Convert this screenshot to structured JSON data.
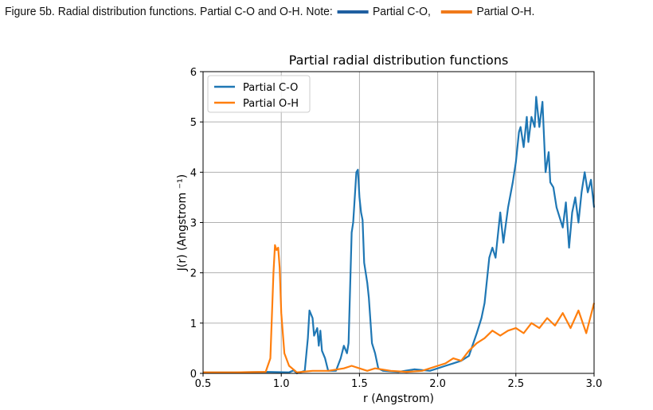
{
  "caption": {
    "label": "Figure 5b.",
    "text": "Radial distribution functions. Partial C-O and O-H.",
    "note": "Note:",
    "legend": [
      {
        "text": "Partial C-O,",
        "color": "#1f5fa0"
      },
      {
        "text": "Partial O-H.",
        "color": "#f07a1a"
      }
    ]
  },
  "chart_data": {
    "type": "line",
    "title": "Partial radial distribution functions",
    "xlabel": "r (Angstrom)",
    "ylabel": "J(r) (Angstrom ⁻¹)",
    "xlim": [
      0.5,
      3.0
    ],
    "ylim": [
      0,
      6
    ],
    "xticks": [
      "0.5",
      "1.0",
      "1.5",
      "2.0",
      "2.5",
      "3.0"
    ],
    "yticks": [
      "0",
      "1",
      "2",
      "3",
      "4",
      "5",
      "6"
    ],
    "grid": true,
    "legend_position": "top-left",
    "series": [
      {
        "name": "Partial C-O",
        "color": "#1f77b4",
        "x": [
          0.5,
          0.7,
          0.9,
          1.05,
          1.08,
          1.1,
          1.15,
          1.17,
          1.18,
          1.2,
          1.21,
          1.23,
          1.24,
          1.25,
          1.26,
          1.28,
          1.3,
          1.35,
          1.38,
          1.4,
          1.42,
          1.43,
          1.45,
          1.46,
          1.48,
          1.49,
          1.5,
          1.51,
          1.52,
          1.53,
          1.55,
          1.56,
          1.58,
          1.6,
          1.62,
          1.65,
          1.75,
          1.85,
          1.95,
          2.0,
          2.05,
          2.1,
          2.15,
          2.2,
          2.25,
          2.28,
          2.3,
          2.33,
          2.35,
          2.37,
          2.38,
          2.4,
          2.42,
          2.45,
          2.48,
          2.5,
          2.52,
          2.53,
          2.55,
          2.57,
          2.58,
          2.6,
          2.62,
          2.63,
          2.65,
          2.67,
          2.69,
          2.71,
          2.72,
          2.74,
          2.76,
          2.78,
          2.8,
          2.82,
          2.84,
          2.86,
          2.88,
          2.9,
          2.92,
          2.94,
          2.96,
          2.98,
          3.0
        ],
        "y": [
          0.02,
          0.02,
          0.03,
          0.02,
          0.06,
          0,
          0.05,
          0.7,
          1.25,
          1.1,
          0.75,
          0.9,
          0.55,
          0.85,
          0.45,
          0.3,
          0.05,
          0.05,
          0.3,
          0.55,
          0.4,
          0.6,
          2.8,
          3.0,
          4.0,
          4.05,
          3.5,
          3.2,
          3.05,
          2.2,
          1.8,
          1.5,
          0.6,
          0.4,
          0.1,
          0.05,
          0.03,
          0.08,
          0.05,
          0.1,
          0.15,
          0.2,
          0.25,
          0.35,
          0.8,
          1.1,
          1.4,
          2.3,
          2.5,
          2.3,
          2.6,
          3.2,
          2.6,
          3.3,
          3.8,
          4.2,
          4.8,
          4.9,
          4.5,
          5.1,
          4.6,
          5.1,
          4.9,
          5.5,
          4.9,
          5.4,
          4.0,
          4.4,
          3.8,
          3.7,
          3.3,
          3.1,
          2.9,
          3.4,
          2.5,
          3.2,
          3.5,
          3.0,
          3.6,
          4.0,
          3.6,
          3.85,
          3.3
        ]
      },
      {
        "name": "Partial O-H",
        "color": "#ff7f0e",
        "x": [
          0.5,
          0.7,
          0.9,
          0.93,
          0.95,
          0.96,
          0.97,
          0.98,
          0.99,
          1.0,
          1.02,
          1.05,
          1.1,
          1.2,
          1.3,
          1.4,
          1.45,
          1.5,
          1.55,
          1.6,
          1.7,
          1.8,
          1.9,
          2.0,
          2.05,
          2.1,
          2.15,
          2.2,
          2.25,
          2.3,
          2.35,
          2.4,
          2.45,
          2.5,
          2.55,
          2.6,
          2.65,
          2.7,
          2.75,
          2.8,
          2.85,
          2.9,
          2.95,
          3.0
        ],
        "y": [
          0.02,
          0.02,
          0.03,
          0.3,
          2.0,
          2.55,
          2.45,
          2.5,
          2.1,
          1.2,
          0.4,
          0.15,
          0.02,
          0.05,
          0.05,
          0.1,
          0.15,
          0.1,
          0.05,
          0.1,
          0.05,
          0.03,
          0.05,
          0.15,
          0.2,
          0.3,
          0.25,
          0.45,
          0.6,
          0.7,
          0.85,
          0.75,
          0.85,
          0.9,
          0.8,
          1.0,
          0.9,
          1.1,
          0.95,
          1.2,
          0.9,
          1.25,
          0.8,
          1.4
        ]
      }
    ]
  }
}
